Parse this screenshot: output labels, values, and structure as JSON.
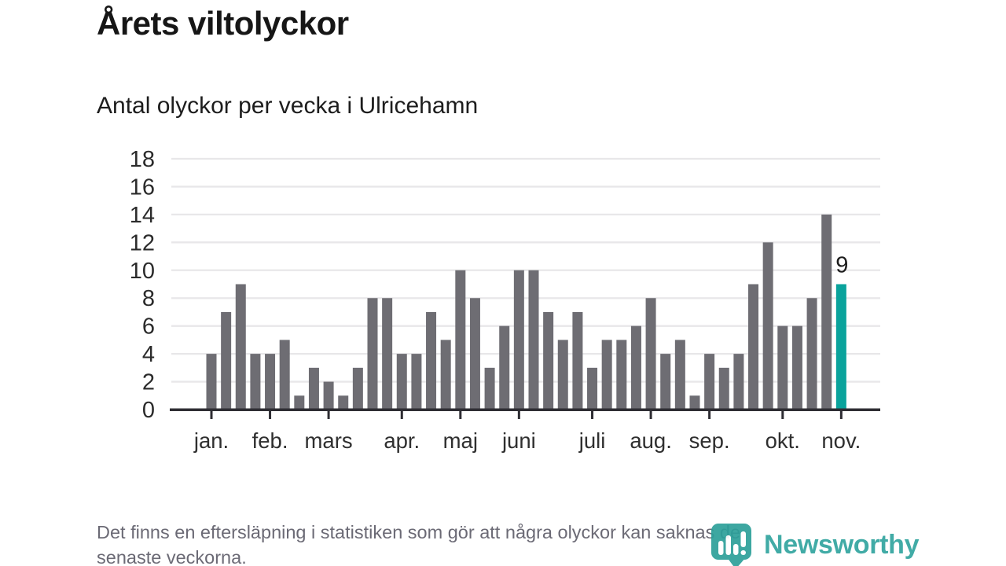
{
  "chart_data": {
    "type": "bar",
    "title": "Årets viltolyckor",
    "subtitle": "Antal olyckor per vecka i Ulricehamn",
    "x_unit": "vecka",
    "values": [
      4,
      7,
      9,
      4,
      4,
      5,
      1,
      3,
      2,
      1,
      3,
      8,
      8,
      4,
      4,
      7,
      5,
      10,
      8,
      3,
      6,
      10,
      10,
      7,
      5,
      7,
      3,
      5,
      5,
      6,
      8,
      4,
      5,
      1,
      4,
      3,
      4,
      9,
      12,
      6,
      6,
      8,
      14,
      9
    ],
    "highlight": {
      "index": 43,
      "label": "9",
      "value": 9
    },
    "month_ticks": [
      {
        "label": "jan.",
        "week_index": 0
      },
      {
        "label": "feb.",
        "week_index": 4
      },
      {
        "label": "mars",
        "week_index": 8
      },
      {
        "label": "apr.",
        "week_index": 13
      },
      {
        "label": "maj",
        "week_index": 17
      },
      {
        "label": "juni",
        "week_index": 21
      },
      {
        "label": "juli",
        "week_index": 26
      },
      {
        "label": "aug.",
        "week_index": 30
      },
      {
        "label": "sep.",
        "week_index": 34
      },
      {
        "label": "okt.",
        "week_index": 39
      },
      {
        "label": "nov.",
        "week_index": 43
      }
    ],
    "y_ticks": [
      0,
      2,
      4,
      6,
      8,
      10,
      12,
      14,
      16,
      18
    ],
    "ylim": [
      0,
      18
    ],
    "grid": true,
    "legend": "none",
    "colors": {
      "bar": "#6e6d73",
      "highlight": "#0aa39c",
      "grid": "#e8e7e9",
      "axis": "#2e2d33",
      "tick_label": "#2b2b2b",
      "month_label": "#2f2f2f",
      "annotation": "#1d1d1d"
    }
  },
  "footer": {
    "note_line1": "Det finns en eftersläpning i statistiken som gör att några olyckor kan saknas de",
    "note_line2": "senaste veckorna."
  },
  "logo": {
    "text": "Newsworthy",
    "color": "#31a49f",
    "icon": "newsworthy-pin-barchart-icon"
  }
}
